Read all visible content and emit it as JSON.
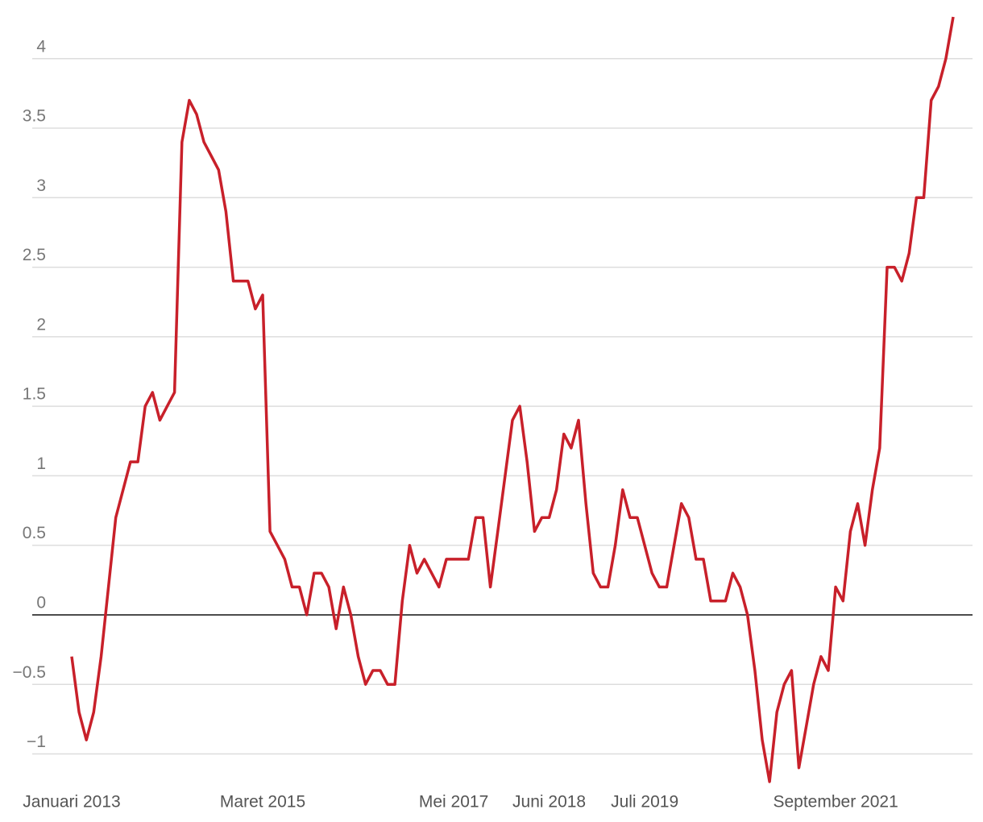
{
  "chart_data": {
    "type": "line",
    "categories": [
      "Januari 2013",
      null,
      null,
      null,
      null,
      null,
      null,
      null,
      null,
      null,
      null,
      null,
      null,
      null,
      null,
      null,
      null,
      null,
      null,
      null,
      null,
      null,
      null,
      null,
      null,
      null,
      "Maret 2015",
      null,
      null,
      null,
      null,
      null,
      null,
      null,
      null,
      null,
      null,
      null,
      null,
      null,
      null,
      null,
      null,
      null,
      null,
      null,
      null,
      null,
      null,
      null,
      null,
      null,
      "Mei 2017",
      null,
      null,
      null,
      null,
      null,
      null,
      null,
      null,
      null,
      null,
      null,
      null,
      "Juni 2018",
      null,
      null,
      null,
      null,
      null,
      null,
      null,
      null,
      null,
      null,
      null,
      null,
      "Juli 2019",
      null,
      null,
      null,
      null,
      null,
      null,
      null,
      null,
      null,
      null,
      null,
      null,
      null,
      null,
      null,
      null,
      null,
      null,
      null,
      null,
      null,
      null,
      null,
      null,
      null,
      "September 2021",
      null,
      null,
      null,
      null,
      null,
      null,
      null,
      null,
      null,
      null,
      null,
      null,
      null,
      null,
      null,
      null
    ],
    "series": [
      {
        "color": "#c8202a",
        "values": [
          -0.3,
          -0.7,
          -0.9,
          -0.7,
          -0.3,
          0.2,
          0.7,
          0.9,
          1.1,
          1.1,
          1.5,
          1.6,
          1.4,
          1.5,
          1.6,
          3.4,
          3.7,
          3.6,
          3.4,
          3.3,
          3.2,
          2.9,
          2.4,
          2.4,
          2.4,
          2.2,
          2.3,
          0.6,
          0.5,
          0.4,
          0.2,
          0.2,
          0.0,
          0.3,
          0.3,
          0.2,
          -0.1,
          0.2,
          0.0,
          -0.3,
          -0.5,
          -0.4,
          -0.4,
          -0.5,
          -0.5,
          0.1,
          0.5,
          0.3,
          0.4,
          0.3,
          0.2,
          0.4,
          0.4,
          0.4,
          0.4,
          0.7,
          0.7,
          0.2,
          0.6,
          1.0,
          1.4,
          1.5,
          1.1,
          0.6,
          0.7,
          0.7,
          0.9,
          1.3,
          1.2,
          1.4,
          0.8,
          0.3,
          0.2,
          0.2,
          0.5,
          0.9,
          0.7,
          0.7,
          0.5,
          0.3,
          0.2,
          0.2,
          0.5,
          0.8,
          0.7,
          0.4,
          0.4,
          0.1,
          0.1,
          0.1,
          0.3,
          0.2,
          0.0,
          -0.4,
          -0.9,
          -1.2,
          -0.7,
          -0.5,
          -0.4,
          -1.1,
          -0.8,
          -0.5,
          -0.3,
          -0.4,
          0.2,
          0.1,
          0.6,
          0.8,
          0.5,
          0.9,
          1.2,
          2.5,
          2.5,
          2.4,
          2.6,
          3.0,
          3.0,
          3.7,
          3.8,
          4.0,
          4.3
        ]
      }
    ],
    "ylim": [
      -1.2,
      4.3
    ],
    "yticks": [
      {
        "value": -1,
        "label": "−1"
      },
      {
        "value": -0.5,
        "label": "−0.5"
      },
      0,
      0.5,
      1,
      1.5,
      2,
      2.5,
      3,
      3.5,
      4
    ],
    "grid": true
  }
}
